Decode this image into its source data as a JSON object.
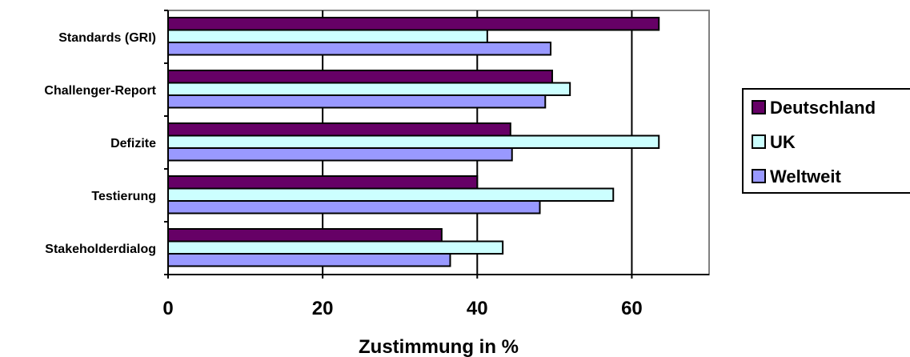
{
  "chart_data": {
    "type": "bar",
    "orientation": "horizontal",
    "categories": [
      "Standards (GRI)",
      "Challenger-Report",
      "Defizite",
      "Testierung",
      "Stakeholderdialog"
    ],
    "series": [
      {
        "name": "Deutschland",
        "color": "#660066",
        "values": [
          63.5,
          49.7,
          44.3,
          40.0,
          35.4
        ]
      },
      {
        "name": "UK",
        "color": "#ccffff",
        "values": [
          41.3,
          52.0,
          63.5,
          57.6,
          43.3
        ]
      },
      {
        "name": "Weltweit",
        "color": "#9999ff",
        "values": [
          49.5,
          48.8,
          44.5,
          48.1,
          36.5
        ]
      }
    ],
    "xlabel": "Zustimmung in %",
    "xlim": [
      0,
      70
    ],
    "xticks": [
      0,
      20,
      40,
      60
    ],
    "grid": "vertical",
    "legend": "right"
  }
}
